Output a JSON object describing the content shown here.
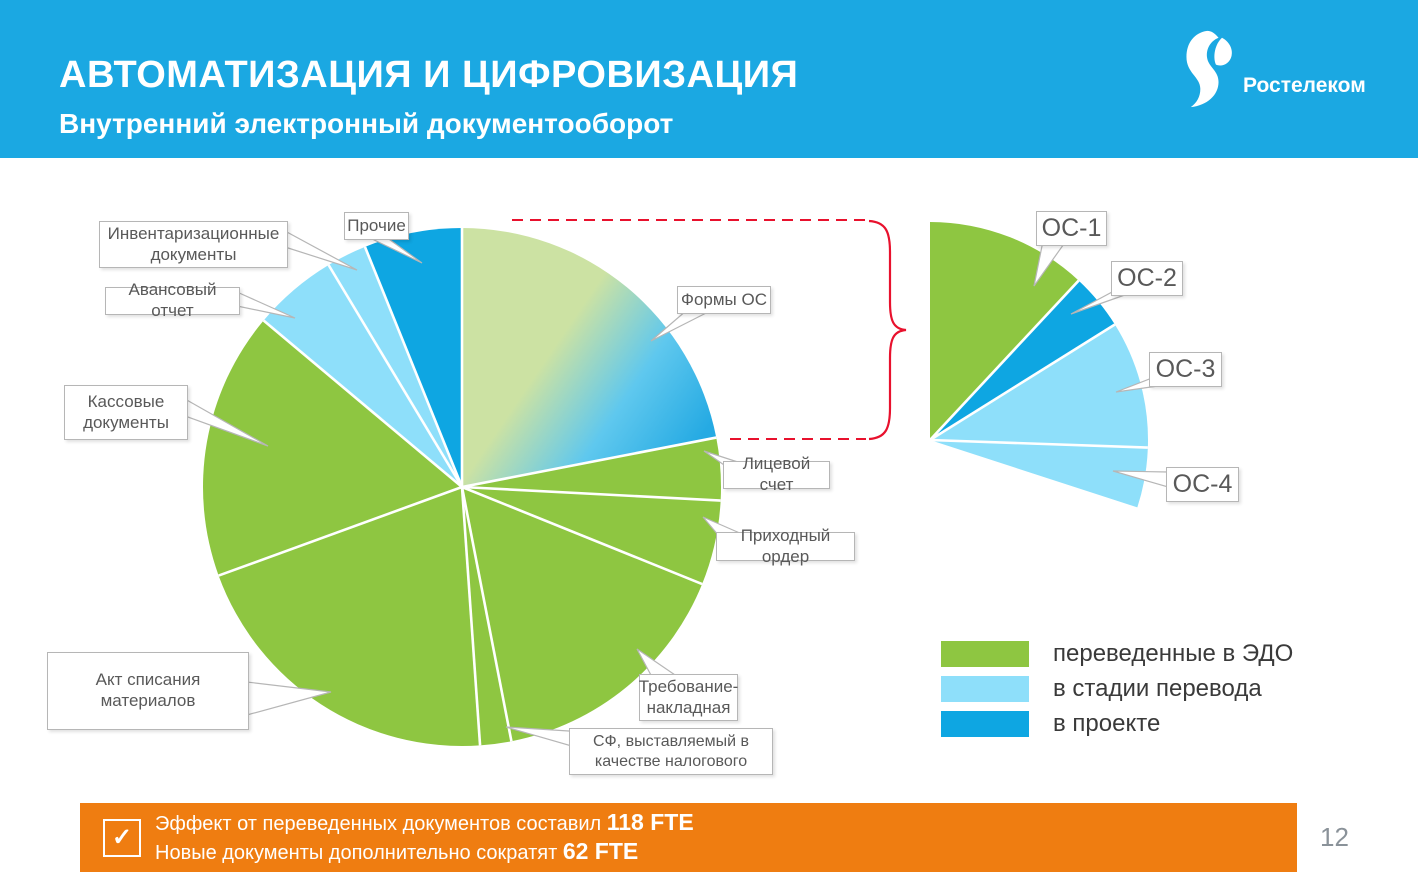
{
  "slide": {
    "title": "АВТОМАТИЗАЦИЯ И ЦИФРОВИЗАЦИЯ",
    "subtitle": "Внутренний электронный документооборот",
    "logo_text": "Ростелеком",
    "page_number": "12"
  },
  "colors": {
    "header_blue": "#1BA8E2",
    "green": "#8EC641",
    "light_blue": "#8EDFFA",
    "blue": "#0EA6E2",
    "orange": "#EF7D11",
    "red": "#E8112D",
    "gradient_start": "#CCE2A3",
    "gradient_mid": "#5FC8EE",
    "gradient_end": "#25AAE3",
    "callout_text": "#595959"
  },
  "legend": {
    "items": [
      {
        "label": "переведенные в ЭДО",
        "color": "green"
      },
      {
        "label": "в стадии перевода",
        "color": "light_blue"
      },
      {
        "label": "в проекте",
        "color": "blue"
      }
    ]
  },
  "banner": {
    "check_icon": "✓",
    "line1_text": "Эффект от переведенных документов составил ",
    "line1_value": "118 FTE",
    "line2_text": "Новые документы дополнительно сократят ",
    "line2_value": "62 FTE"
  },
  "chart_data": {
    "type": "pie",
    "note_values": "no numeric labels shown on slide; percentages estimated from slice angles",
    "pie": {
      "slices": [
        {
          "label": "Формы ОС",
          "color": "gradient",
          "status": "mixed",
          "start_deg": 0,
          "end_deg": 79,
          "value_pct_est": 21.9
        },
        {
          "label": "Лицевой счет",
          "color": "green",
          "status": "переведенные в ЭДО",
          "start_deg": 79,
          "end_deg": 93,
          "value_pct_est": 3.9
        },
        {
          "label": "Приходный ордер",
          "color": "green",
          "status": "переведенные в ЭДО",
          "start_deg": 93,
          "end_deg": 112,
          "value_pct_est": 5.3
        },
        {
          "label": "Требование-накладная",
          "color": "green",
          "status": "переведенные в ЭДО",
          "start_deg": 112,
          "end_deg": 169,
          "value_pct_est": 15.8
        },
        {
          "label": "СФ, выставляемый в качестве налогового",
          "color": "green",
          "status": "переведенные в ЭДО",
          "start_deg": 169,
          "end_deg": 176,
          "value_pct_est": 1.9
        },
        {
          "label": "Акт списания материалов",
          "color": "green",
          "status": "переведенные в ЭДО",
          "start_deg": 176,
          "end_deg": 250,
          "value_pct_est": 20.6
        },
        {
          "label": "Кассовые документы",
          "color": "green",
          "status": "переведенные в ЭДО",
          "start_deg": 250,
          "end_deg": 310,
          "value_pct_est": 16.7
        },
        {
          "label": "Авансовый отчет",
          "color": "light_blue",
          "status": "в стадии перевода",
          "start_deg": 310,
          "end_deg": 329,
          "value_pct_est": 5.3
        },
        {
          "label": "Инвентаризационные документы",
          "color": "light_blue",
          "status": "в стадии перевода",
          "start_deg": 329,
          "end_deg": 338,
          "value_pct_est": 2.5
        },
        {
          "label": "Прочие",
          "color": "blue",
          "status": "в проекте",
          "start_deg": 338,
          "end_deg": 360,
          "value_pct_est": 6.1
        }
      ]
    },
    "fan": {
      "description": "выноска-детализация сегмента «Формы ОС»",
      "slices": [
        {
          "label": "ОС-1",
          "color": "green",
          "status": "переведенные в ЭДО",
          "start_deg": 0,
          "end_deg": 43,
          "share_of_group_pct_est": 39.8
        },
        {
          "label": "ОС-2",
          "color": "blue",
          "status": "в проекте",
          "start_deg": 43,
          "end_deg": 58,
          "share_of_group_pct_est": 13.9
        },
        {
          "label": "ОС-3",
          "color": "light_blue",
          "status": "в стадии перевода",
          "start_deg": 58,
          "end_deg": 92,
          "share_of_group_pct_est": 31.5
        },
        {
          "label": "ОС-4",
          "color": "light_blue",
          "status": "в стадии перевода",
          "start_deg": 92,
          "end_deg": 108,
          "share_of_group_pct_est": 14.8
        }
      ]
    }
  }
}
